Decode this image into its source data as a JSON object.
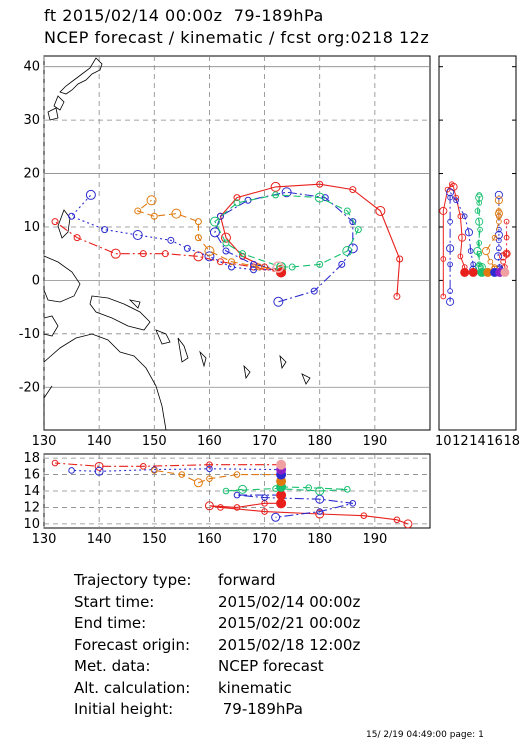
{
  "header": {
    "line1": "ft 2015/02/14 00:00z  79-189hPa",
    "line2": "NCEP forecast / kinematic / fcst org:0218 12z"
  },
  "info": [
    {
      "label": "Trajectory type:",
      "value": "forward"
    },
    {
      "label": "Start time:",
      "value": "2015/02/14 00:00z"
    },
    {
      "label": "End time:",
      "value": "2015/02/21 00:00z"
    },
    {
      "label": "Forecast origin:",
      "value": "2015/02/18 12:00z"
    },
    {
      "label": "Met. data:",
      "value": "NCEP forecast"
    },
    {
      "label": "Alt. calculation:",
      "value": "kinematic"
    },
    {
      "label": "Initial height:",
      "value": " 79-189hPa"
    }
  ],
  "footer": "15/ 2/19 04:49:00 page: 1",
  "chart_data": [
    {
      "type": "line",
      "panel": "map",
      "xlabel": "",
      "ylabel": "",
      "xlim": [
        130,
        200
      ],
      "ylim": [
        -28,
        42
      ],
      "x_ticks": [
        130,
        140,
        150,
        160,
        170,
        180,
        190
      ],
      "y_ticks": [
        -20,
        -10,
        0,
        10,
        20,
        30,
        40
      ],
      "grid": true,
      "series": [
        {
          "color": "#e8201c",
          "style": "solid",
          "points": [
            [
              173,
              1.5
            ],
            [
              170,
              2.5
            ],
            [
              166,
              4.5
            ],
            [
              163,
              8
            ],
            [
              162,
              12
            ],
            [
              165,
              15.5
            ],
            [
              172,
              17.5
            ],
            [
              180,
              18
            ],
            [
              186,
              17
            ],
            [
              191,
              13
            ],
            [
              194.5,
              4
            ],
            [
              194,
              -3
            ]
          ]
        },
        {
          "color": "#e8201c",
          "style": "dashdot",
          "points": [
            [
              173,
              1.5
            ],
            [
              168,
              2.5
            ],
            [
              162,
              3.5
            ],
            [
              158,
              4.5
            ],
            [
              152,
              5
            ],
            [
              148,
              5
            ],
            [
              143,
              5
            ],
            [
              136,
              8
            ],
            [
              132,
              11
            ]
          ]
        },
        {
          "color": "#2b2bd0",
          "style": "dashdot",
          "points": [
            [
              173,
              2
            ],
            [
              168,
              3
            ],
            [
              163,
              5.5
            ],
            [
              161,
              9
            ],
            [
              162,
              12
            ],
            [
              167,
              15
            ],
            [
              174,
              16.5
            ],
            [
              181,
              15.5
            ],
            [
              186,
              11
            ],
            [
              186,
              6
            ],
            [
              184,
              3
            ],
            [
              179,
              -2
            ],
            [
              172.5,
              -4
            ]
          ]
        },
        {
          "color": "#2b2bd0",
          "style": "dotted",
          "points": [
            [
              173,
              2
            ],
            [
              168,
              2
            ],
            [
              164,
              2.5
            ],
            [
              160,
              4.5
            ],
            [
              156,
              6
            ],
            [
              153,
              7.5
            ],
            [
              147,
              8.5
            ],
            [
              141,
              9.5
            ],
            [
              135,
              12
            ],
            [
              138.5,
              16
            ]
          ]
        },
        {
          "color": "#e07a10",
          "style": "dashed",
          "points": [
            [
              173,
              2
            ],
            [
              169,
              2.5
            ],
            [
              164,
              3.5
            ],
            [
              160,
              5.5
            ],
            [
              158,
              8
            ],
            [
              158,
              11
            ],
            [
              154,
              12.5
            ],
            [
              150,
              12
            ],
            [
              147,
              13
            ],
            [
              149.5,
              15
            ]
          ]
        },
        {
          "color": "#18c070",
          "style": "dashed",
          "points": [
            [
              173,
              2.5
            ],
            [
              175,
              2.5
            ],
            [
              180,
              3
            ],
            [
              185,
              5.5
            ],
            [
              187,
              9.5
            ],
            [
              185,
              13
            ],
            [
              180,
              15.5
            ],
            [
              172,
              16
            ],
            [
              165,
              14.5
            ],
            [
              161,
              11
            ],
            [
              163,
              7
            ],
            [
              166,
              5
            ],
            [
              173,
              2.5
            ]
          ]
        }
      ]
    },
    {
      "type": "line",
      "panel": "height-vs-longitude",
      "xlim": [
        130,
        200
      ],
      "ylim": [
        9.5,
        18.5
      ],
      "x_ticks": [
        130,
        140,
        150,
        160,
        170,
        180,
        190
      ],
      "y_ticks": [
        10,
        12,
        14,
        16,
        18
      ],
      "grid": true,
      "series": [
        {
          "color": "#e8201c",
          "style": "solid",
          "points": [
            [
              173,
              12.5
            ],
            [
              170,
              12.5
            ],
            [
              165,
              12
            ],
            [
              160,
              12.2
            ],
            [
              162,
              12
            ],
            [
              170,
              11.5
            ],
            [
              180,
              11.2
            ],
            [
              188,
              11
            ],
            [
              194,
              10.5
            ],
            [
              196,
              10
            ]
          ]
        },
        {
          "color": "#e8201c",
          "style": "dashdot",
          "points": [
            [
              173,
              17.2
            ],
            [
              160,
              17.2
            ],
            [
              148,
              17
            ],
            [
              140,
              17
            ],
            [
              132,
              17.4
            ]
          ]
        },
        {
          "color": "#2b2bd0",
          "style": "dashdot",
          "points": [
            [
              173,
              13.5
            ],
            [
              165,
              13.5
            ],
            [
              170,
              13.2
            ],
            [
              180,
              13
            ],
            [
              186,
              12.5
            ],
            [
              180,
              11.5
            ],
            [
              172,
              10.8
            ]
          ]
        },
        {
          "color": "#2b2bd0",
          "style": "dotted",
          "points": [
            [
              173,
              16.6
            ],
            [
              160,
              16.7
            ],
            [
              150,
              16.6
            ],
            [
              140,
              16.4
            ],
            [
              135,
              16.5
            ]
          ]
        },
        {
          "color": "#e07a10",
          "style": "dashed",
          "points": [
            [
              173,
              16
            ],
            [
              165,
              16
            ],
            [
              160,
              15.5
            ],
            [
              158,
              15
            ],
            [
              155,
              16
            ],
            [
              150,
              16.5
            ]
          ]
        },
        {
          "color": "#18c070",
          "style": "dashed",
          "points": [
            [
              173,
              14.5
            ],
            [
              178,
              14.4
            ],
            [
              185,
              14.2
            ],
            [
              180,
              14
            ],
            [
              172,
              14.3
            ],
            [
              163,
              14
            ],
            [
              166,
              14.2
            ]
          ]
        }
      ]
    },
    {
      "type": "line",
      "panel": "latitude-vs-height",
      "x_ticks": [
        10,
        12,
        14,
        16,
        18
      ],
      "xlim": [
        9.5,
        18.5
      ],
      "ylim": [
        -28,
        42
      ],
      "grid": false,
      "series": []
    }
  ]
}
